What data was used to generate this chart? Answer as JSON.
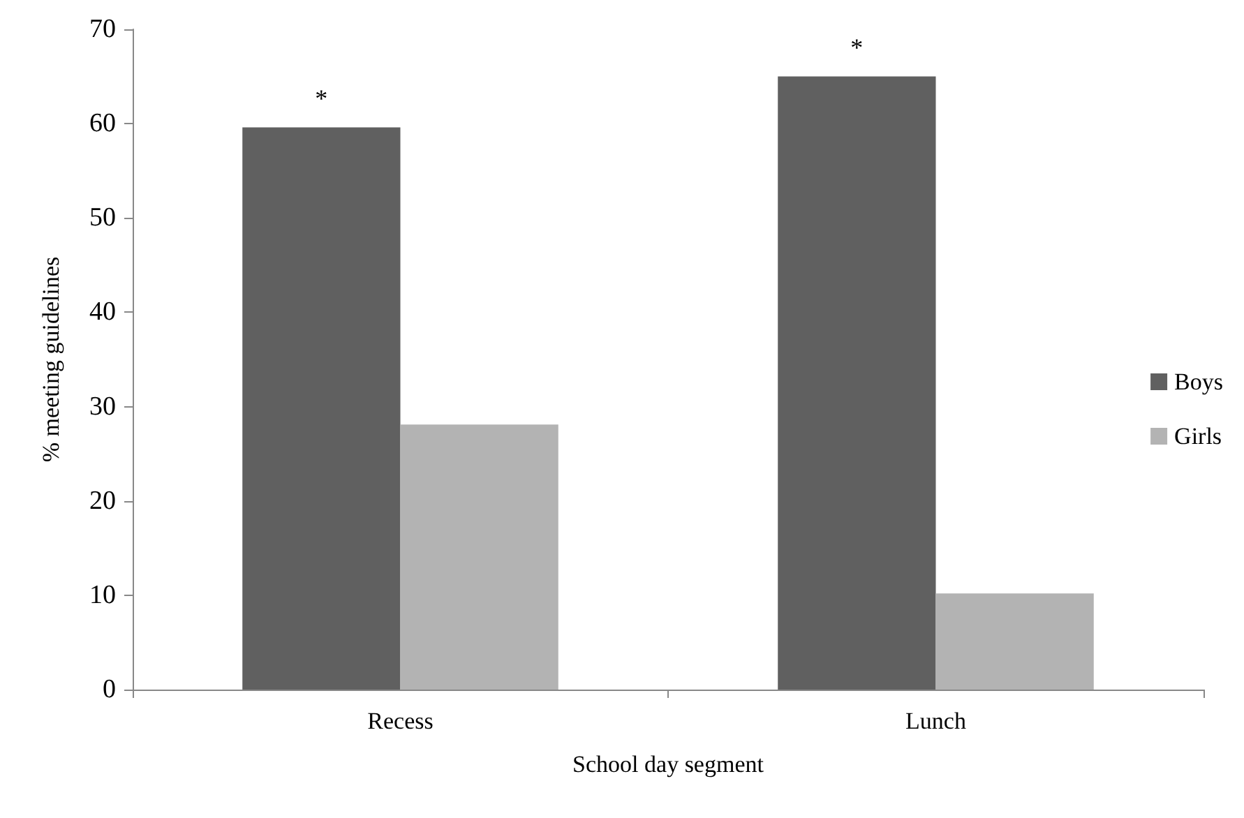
{
  "chart_data": {
    "type": "bar",
    "xlabel": "School day segment",
    "ylabel": "% meeting guidelines",
    "categories": [
      "Recess",
      "Lunch"
    ],
    "series": [
      {
        "name": "Boys",
        "color": "#606060",
        "values": [
          59.6,
          65.0
        ]
      },
      {
        "name": "Girls",
        "color": "#b3b3b3",
        "values": [
          28.1,
          10.2
        ]
      }
    ],
    "ylim": [
      0,
      70
    ],
    "yticks": [
      0,
      10,
      20,
      30,
      40,
      50,
      60,
      70
    ],
    "grid": false,
    "legend": "right",
    "annotations": [
      {
        "text": "*",
        "x": "Recess",
        "y": 59.6
      },
      {
        "text": "*",
        "x": "Lunch",
        "y": 65.0
      }
    ]
  }
}
